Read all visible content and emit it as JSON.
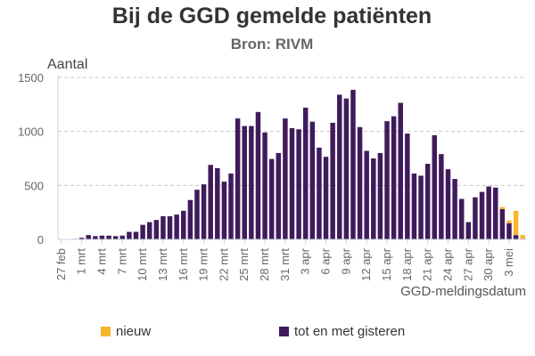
{
  "chart_data": {
    "type": "bar",
    "stacked": true,
    "title": "Bij de GGD gemelde patiënten",
    "subtitle": "Bron: RIVM",
    "ylabel": "Aantal",
    "xlabel": "GGD-meldingsdatum",
    "ylim": [
      0,
      1500
    ],
    "yticks": [
      0,
      500,
      1000,
      1500
    ],
    "grid": true,
    "legend_position": "bottom",
    "tick_labels": [
      "27 feb",
      "1 mrt",
      "4 mrt",
      "7 mrt",
      "10 mrt",
      "13 mrt",
      "16 mrt",
      "19 mrt",
      "22 mrt",
      "25 mrt",
      "28 mrt",
      "31 mrt",
      "3 apr",
      "6 apr",
      "9 apr",
      "12 apr",
      "15 apr",
      "18 apr",
      "21 apr",
      "24 apr",
      "27 apr",
      "30 apr",
      "3 mei"
    ],
    "categories": [
      "27 feb",
      "28 feb",
      "29 feb",
      "1 mrt",
      "2 mrt",
      "3 mrt",
      "4 mrt",
      "5 mrt",
      "6 mrt",
      "7 mrt",
      "8 mrt",
      "9 mrt",
      "10 mrt",
      "11 mrt",
      "12 mrt",
      "13 mrt",
      "14 mrt",
      "15 mrt",
      "16 mrt",
      "17 mrt",
      "18 mrt",
      "19 mrt",
      "20 mrt",
      "21 mrt",
      "22 mrt",
      "23 mrt",
      "24 mrt",
      "25 mrt",
      "26 mrt",
      "27 mrt",
      "28 mrt",
      "29 mrt",
      "30 mrt",
      "31 mrt",
      "1 apr",
      "2 apr",
      "3 apr",
      "4 apr",
      "5 apr",
      "6 apr",
      "7 apr",
      "8 apr",
      "9 apr",
      "10 apr",
      "11 apr",
      "12 apr",
      "13 apr",
      "14 apr",
      "15 apr",
      "16 apr",
      "17 apr",
      "18 apr",
      "19 apr",
      "20 apr",
      "21 apr",
      "22 apr",
      "23 apr",
      "24 apr",
      "25 apr",
      "26 apr",
      "27 apr",
      "28 apr",
      "29 apr",
      "30 apr",
      "1 mei",
      "2 mei",
      "3 mei",
      "4 mei",
      "5 mei"
    ],
    "series": [
      {
        "name": "tot en met gisteren",
        "color": "#3f1b5c",
        "values": [
          2,
          3,
          5,
          15,
          40,
          30,
          35,
          35,
          30,
          35,
          70,
          70,
          135,
          160,
          180,
          215,
          215,
          230,
          265,
          365,
          460,
          510,
          690,
          660,
          535,
          610,
          1120,
          1050,
          1050,
          1180,
          990,
          745,
          800,
          1120,
          1030,
          1020,
          1220,
          1090,
          850,
          765,
          1080,
          1340,
          1305,
          1385,
          1040,
          820,
          750,
          800,
          1095,
          1140,
          1265,
          980,
          610,
          590,
          700,
          965,
          790,
          650,
          560,
          375,
          160,
          390,
          440,
          490,
          480,
          280,
          150,
          40,
          0
        ]
      },
      {
        "name": "nieuw",
        "color": "#f7b52c",
        "values": [
          0,
          0,
          0,
          0,
          0,
          0,
          0,
          0,
          0,
          0,
          0,
          0,
          0,
          0,
          0,
          0,
          0,
          0,
          0,
          0,
          0,
          0,
          0,
          0,
          0,
          0,
          0,
          0,
          0,
          0,
          0,
          0,
          0,
          0,
          0,
          0,
          0,
          0,
          0,
          0,
          0,
          0,
          0,
          0,
          0,
          0,
          0,
          0,
          0,
          0,
          0,
          0,
          0,
          0,
          0,
          0,
          0,
          0,
          0,
          0,
          0,
          0,
          0,
          0,
          0,
          20,
          25,
          225,
          40
        ]
      }
    ]
  }
}
